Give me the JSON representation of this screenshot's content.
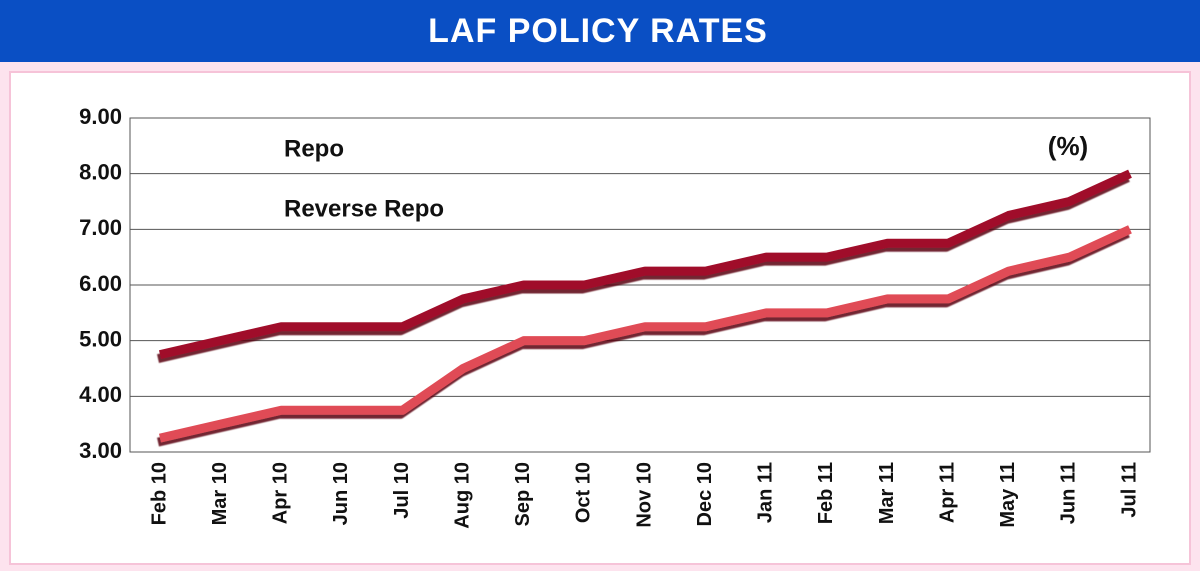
{
  "chart_data": {
    "type": "line",
    "title": "LAF POLICY RATES",
    "annotation": "(%)",
    "categories": [
      "Feb 10",
      "Mar 10",
      "Apr 10",
      "Jun 10",
      "Jul 10",
      "Aug 10",
      "Sep 10",
      "Oct 10",
      "Nov 10",
      "Dec 10",
      "Jan 11",
      "Feb 11",
      "Mar 11",
      "Apr 11",
      "May 11",
      "Jun 11",
      "Jul 11"
    ],
    "series": [
      {
        "name": "Repo",
        "color": "#a0102c",
        "values": [
          4.75,
          5.0,
          5.25,
          5.25,
          5.25,
          5.75,
          6.0,
          6.0,
          6.25,
          6.25,
          6.5,
          6.5,
          6.75,
          6.75,
          7.25,
          7.5,
          8.0
        ]
      },
      {
        "name": "Reverse Repo",
        "color": "#e04c56",
        "values": [
          3.25,
          3.5,
          3.75,
          3.75,
          3.75,
          4.5,
          5.0,
          5.0,
          5.25,
          5.25,
          5.5,
          5.5,
          5.75,
          5.75,
          6.25,
          6.5,
          7.0
        ]
      }
    ],
    "ylim": [
      3,
      9
    ],
    "yticks": [
      {
        "value": 3,
        "label": "3.00"
      },
      {
        "value": 4,
        "label": "4.00"
      },
      {
        "value": 5,
        "label": "5.00"
      },
      {
        "value": 6,
        "label": "6.00"
      },
      {
        "value": 7,
        "label": "7.00"
      },
      {
        "value": 8,
        "label": "8.00"
      },
      {
        "value": 9,
        "label": "9.00"
      }
    ],
    "grid": true,
    "legend": "top-left"
  }
}
